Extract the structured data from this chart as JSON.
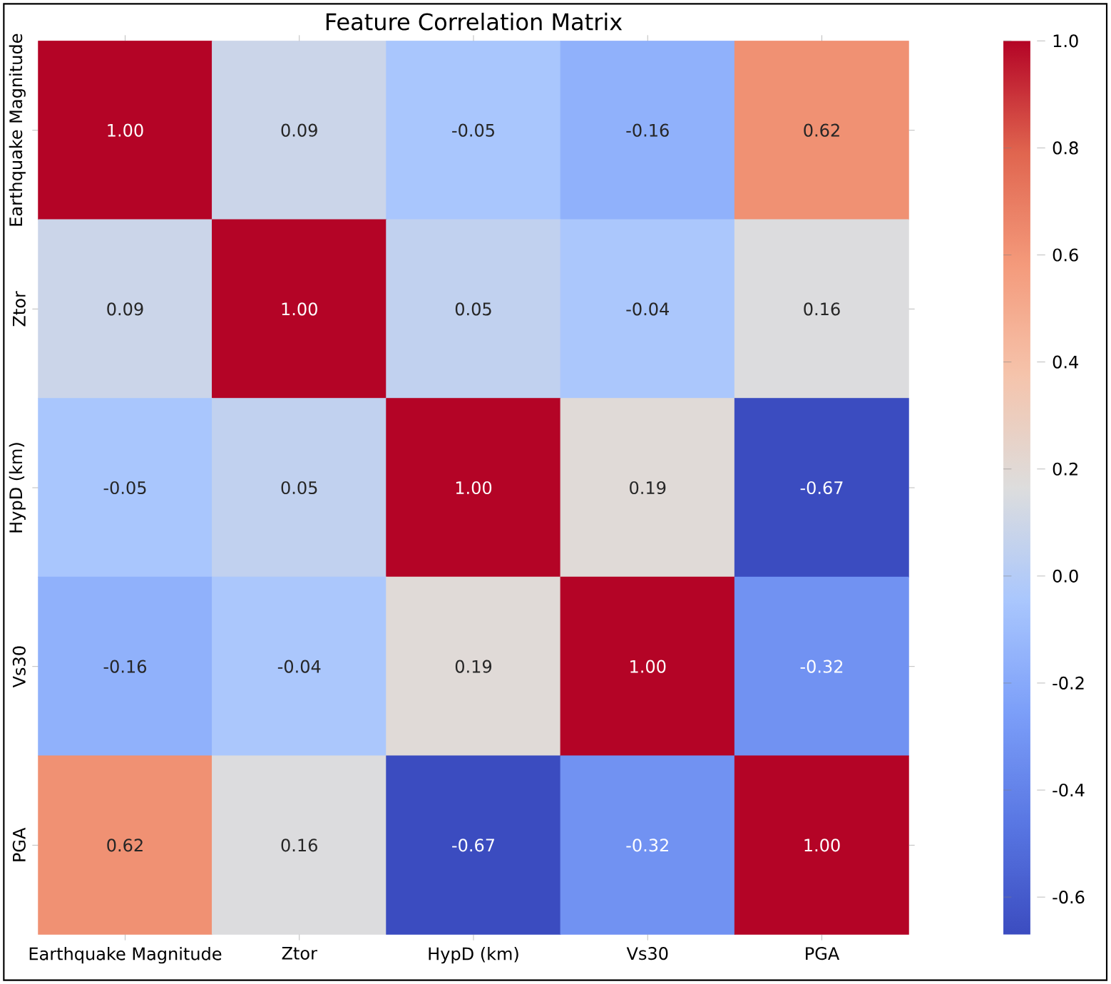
{
  "chart_data": {
    "type": "heatmap",
    "title": "Feature Correlation Matrix",
    "categories": [
      "Earthquake Magnitude",
      "Ztor",
      "HypD (km)",
      "Vs30",
      "PGA"
    ],
    "y_categories": [
      "Earthquake Magnitude",
      "Ztor",
      "HypD (km)",
      "Vs30",
      "PGA"
    ],
    "cells": [
      [
        1.0,
        0.09,
        -0.05,
        -0.16,
        0.62
      ],
      [
        0.09,
        1.0,
        0.05,
        -0.04,
        0.16
      ],
      [
        -0.05,
        0.05,
        1.0,
        0.19,
        -0.67
      ],
      [
        -0.16,
        -0.04,
        0.19,
        1.0,
        -0.32
      ],
      [
        0.62,
        0.16,
        -0.67,
        -0.32,
        1.0
      ]
    ],
    "cell_labels": [
      [
        "1.00",
        "0.09",
        "-0.05",
        "-0.16",
        "0.62"
      ],
      [
        "0.09",
        "1.00",
        "0.05",
        "-0.04",
        "0.16"
      ],
      [
        "-0.05",
        "0.05",
        "1.00",
        "0.19",
        "-0.67"
      ],
      [
        "-0.16",
        "-0.04",
        "0.19",
        "1.00",
        "-0.32"
      ],
      [
        "0.62",
        "0.16",
        "-0.67",
        "-0.32",
        "1.00"
      ]
    ],
    "clim": [
      -0.67,
      1.0
    ],
    "cticks": [
      -0.6,
      -0.4,
      -0.2,
      {
        "value": 0,
        "label": "0.0"
      },
      0.2,
      0.4,
      0.6,
      0.8,
      {
        "value": 1,
        "label": "1.0"
      }
    ]
  }
}
